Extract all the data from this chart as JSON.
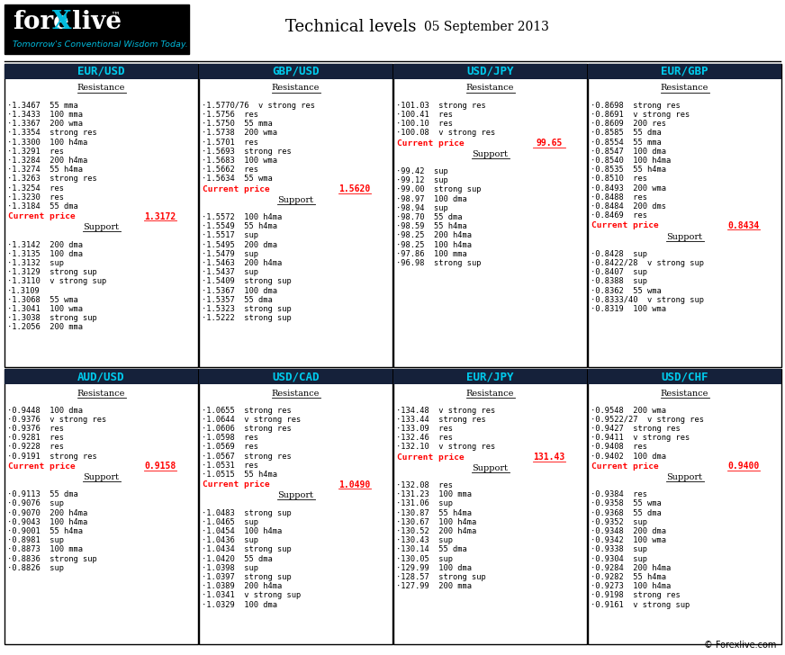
{
  "title": "Technical levels",
  "date": "05 September 2013",
  "footer": "© Forexlive.com",
  "panels": [
    {
      "title": "EUR/USD",
      "current_price": "1.3172",
      "resistance": [
        "·1.3467  55 mma",
        "·1.3433  100 mma",
        "·1.3367  200 wma",
        "·1.3354  strong res",
        "·1.3300  100 h4ma",
        "·1.3291  res",
        "·1.3284  200 h4ma",
        "·1.3274  55 h4ma",
        "·1.3263  strong res",
        "·1.3254  res",
        "·1.3230  res",
        "·1.3184  55 dma"
      ],
      "support": [
        "·1.3142  200 dma",
        "·1.3135  100 dma",
        "·1.3132  sup",
        "·1.3129  strong sup",
        "·1.3110  v strong sup",
        "·1.3109",
        "·1.3068  55 wma",
        "·1.3041  100 wma",
        "·1.3038  strong sup",
        "·1.2056  200 mma"
      ]
    },
    {
      "title": "GBP/USD",
      "current_price": "1.5620",
      "resistance": [
        "·1.5770/76  v strong res",
        "·1.5756  res",
        "·1.5750  55 mma",
        "·1.5738  200 wma",
        "·1.5701  res",
        "·1.5693  strong res",
        "·1.5683  100 wma",
        "·1.5662  res",
        "·1.5634  55 wma"
      ],
      "support": [
        "·1.5572  100 h4ma",
        "·1.5549  55 h4ma",
        "·1.5517  sup",
        "·1.5495  200 dma",
        "·1.5479  sup",
        "·1.5463  200 h4ma",
        "·1.5437  sup",
        "·1.5409  strong sup",
        "·1.5367  100 dma",
        "·1.5357  55 dma",
        "·1.5323  strong sup",
        "·1.5222  strong sup"
      ]
    },
    {
      "title": "USD/JPY",
      "current_price": "99.65",
      "resistance": [
        "·101.03  strong res",
        "·100.41  res",
        "·100.10  res",
        "·100.08  v strong res"
      ],
      "support": [
        "·99.42  sup",
        "·99.12  sup",
        "·99.00  strong sup",
        "·98.97  100 dma",
        "·98.94  sup",
        "·98.70  55 dma",
        "·98.59  55 h4ma",
        "·98.25  200 h4ma",
        "·98.25  100 h4ma",
        "·97.86  100 mma",
        "·96.98  strong sup"
      ]
    },
    {
      "title": "EUR/GBP",
      "current_price": "0.8434",
      "resistance": [
        "·0.8698  strong res",
        "·0.8691  v strong res",
        "·0.8609  200 res",
        "·0.8585  55 dma",
        "·0.8554  55 mma",
        "·0.8547  100 dma",
        "·0.8540  100 h4ma",
        "·0.8535  55 h4ma",
        "·0.8510  res",
        "·0.8493  200 wma",
        "·0.8488  res",
        "·0.8484  200 dms",
        "·0.8469  res"
      ],
      "support": [
        "·0.8428  sup",
        "·0.8422/28  v strong sup",
        "·0.8407  sup",
        "·0.8388  sup",
        "·0.8362  55 wma",
        "·0.8333/40  v strong sup",
        "·0.8319  100 wma"
      ]
    },
    {
      "title": "AUD/USD",
      "current_price": "0.9158",
      "resistance": [
        "·0.9448  100 dma",
        "·0.9376  v strong res",
        "·0.9376  res",
        "·0.9281  res",
        "·0.9228  res",
        "·0.9191  strong res"
      ],
      "support": [
        "·0.9113  55 dma",
        "·0.9076  sup",
        "·0.9070  200 h4ma",
        "·0.9043  100 h4ma",
        "·0.9001  55 h4ma",
        "·0.8981  sup",
        "·0.8873  100 mma",
        "·0.8836  strong sup",
        "·0.8826  sup"
      ]
    },
    {
      "title": "USD/CAD",
      "current_price": "1.0490",
      "resistance": [
        "·1.0655  strong res",
        "·1.0644  v strong res",
        "·1.0606  strong res",
        "·1.0598  res",
        "·1.0569  res",
        "·1.0567  strong res",
        "·1.0531  res",
        "·1.0515  55 h4ma"
      ],
      "support": [
        "·1.0483  strong sup",
        "·1.0465  sup",
        "·1.0454  100 h4ma",
        "·1.0436  sup",
        "·1.0434  strong sup",
        "·1.0420  55 dma",
        "·1.0398  sup",
        "·1.0397  strong sup",
        "·1.0389  200 h4ma",
        "·1.0341  v strong sup",
        "·1.0329  100 dma"
      ]
    },
    {
      "title": "EUR/JPY",
      "current_price": "131.43",
      "resistance": [
        "·134.48  v strong res",
        "·133.44  strong res",
        "·133.09  res",
        "·132.46  res",
        "·132.10  v strong res"
      ],
      "support": [
        "·132.08  res",
        "·131.23  100 mma",
        "·131.06  sup",
        "·130.87  55 h4ma",
        "·130.67  100 h4ma",
        "·130.52  200 h4ma",
        "·130.43  sup",
        "·130.14  55 dma",
        "·130.05  sup",
        "·129.99  100 dma",
        "·128.57  strong sup",
        "·127.99  200 mma"
      ]
    },
    {
      "title": "USD/CHF",
      "current_price": "0.9400",
      "resistance": [
        "·0.9548  200 wma",
        "·0.9522/27  v strong res",
        "·0.9427  strong res",
        "·0.9411  v strong res",
        "·0.9408  res",
        "·0.9402  100 dma"
      ],
      "support": [
        "·0.9384  res",
        "·0.9358  55 wma",
        "·0.9368  55 dma",
        "·0.9352  sup",
        "·0.9348  200 dma",
        "·0.9342  100 wma",
        "·0.9338  sup",
        "·0.9304  sup",
        "·0.9284  200 h4ma",
        "·0.9282  55 h4ma",
        "·0.9273  100 h4ma",
        "·0.9198  strong res",
        "·0.9161  v strong sup"
      ]
    }
  ]
}
